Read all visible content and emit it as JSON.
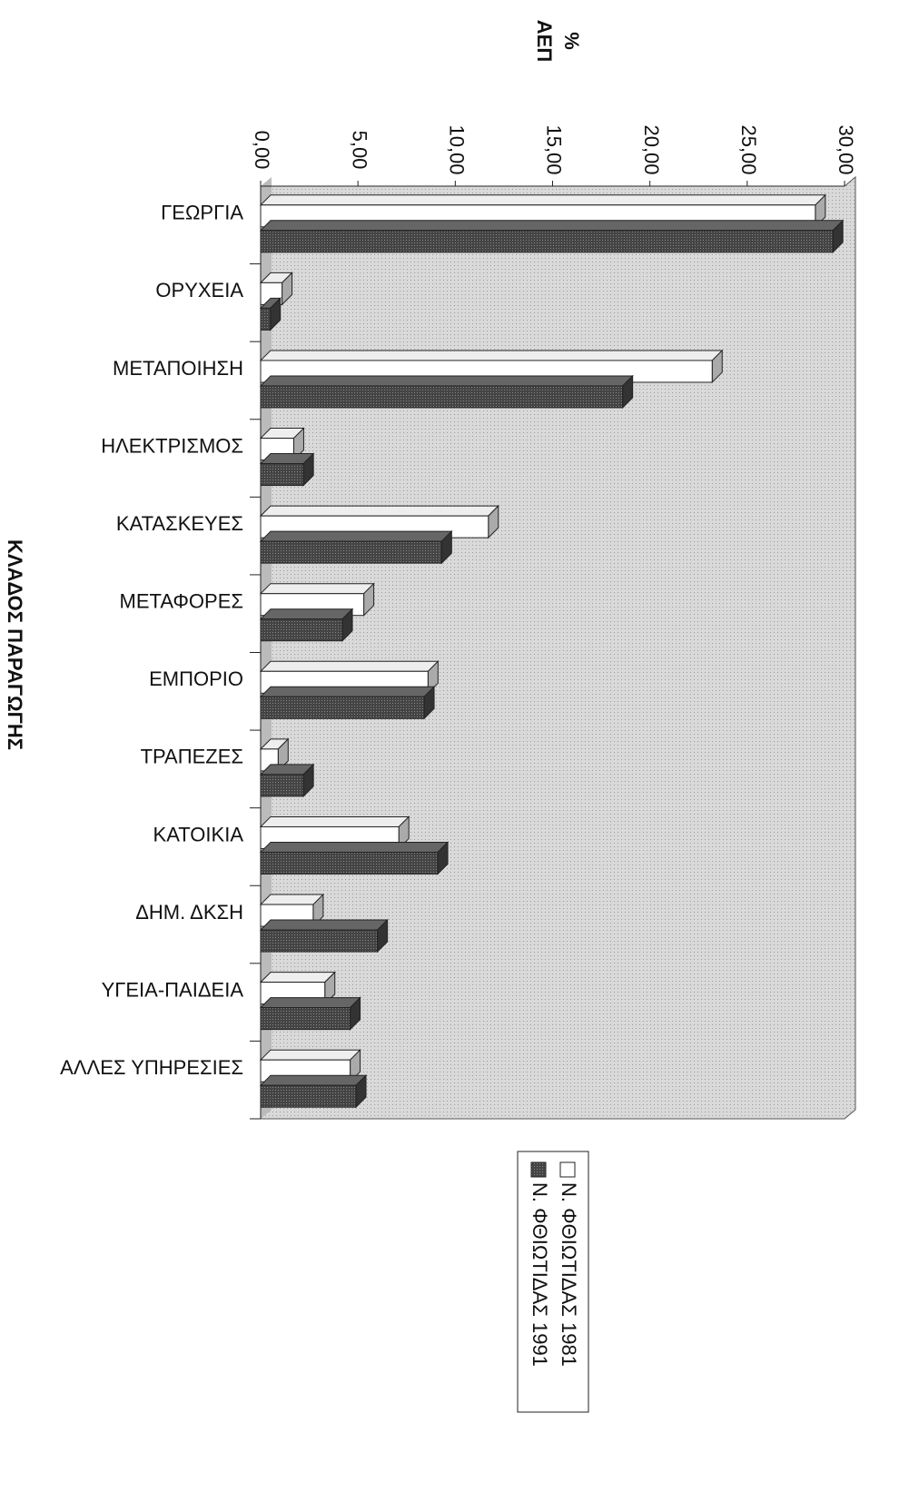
{
  "chart_data": {
    "type": "bar",
    "orientation": "horizontal",
    "x_label": "ΚΛΑΔΟΣ ΠΑΡΑΓΩΓΗΣ",
    "y_label": [
      "%",
      "ΑΕΠ"
    ],
    "categories": [
      "ΓΕΩΡΓΙΑ",
      "ΟΡΥΧΕΙΑ",
      "ΜΕΤΑΠΟΙΗΣΗ",
      "ΗΛΕΚΤΡΙΣΜΟΣ",
      "ΚΑΤΑΣΚΕΥΕΣ",
      "ΜΕΤΑΦΟΡΕΣ",
      "ΕΜΠΟΡΙΟ",
      "ΤΡΑΠΕΖΕΣ",
      "ΚΑΤΟΙΚΙΑ",
      "ΔΗΜ. ΔΚΣΗ",
      "ΥΓΕΙΑ-ΠΑΙΔΕΙΑ",
      "ΑΛΛΕΣ ΥΠΗΡΕΣΙΕΣ"
    ],
    "series": [
      {
        "name": "Ν. ΦΘΙΩΤΙΔΑΣ 1981",
        "color": "#ffffff",
        "values": [
          28.5,
          1.1,
          23.2,
          1.7,
          11.7,
          5.3,
          8.6,
          0.9,
          7.1,
          2.7,
          3.3,
          4.6
        ]
      },
      {
        "name": "Ν. ΦΘΙΩΤΙΔΑΣ 1991",
        "color": "#4a4a4a",
        "values": [
          29.4,
          0.5,
          18.6,
          2.2,
          9.3,
          4.2,
          8.4,
          2.2,
          9.1,
          6.0,
          4.6,
          4.9
        ]
      }
    ],
    "ylim": [
      0,
      30
    ],
    "yticks": [
      {
        "value": 0,
        "label": "0,00"
      },
      {
        "value": 5,
        "label": "5,00"
      },
      {
        "value": 10,
        "label": "10,00"
      },
      {
        "value": 15,
        "label": "15,00"
      },
      {
        "value": 20,
        "label": "20,00"
      },
      {
        "value": 25,
        "label": "25,00"
      },
      {
        "value": 30,
        "label": "30,00"
      }
    ],
    "grid": false,
    "legend": "bottom"
  }
}
